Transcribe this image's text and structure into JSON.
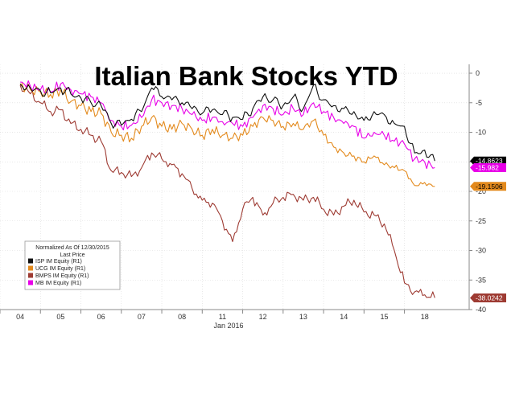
{
  "chart_data": {
    "type": "line",
    "title": "Italian Bank Stocks YTD",
    "xlabel": "Jan 2016",
    "ylabel": "",
    "x_ticks": [
      "04",
      "05",
      "06",
      "07",
      "08",
      "11",
      "12",
      "13",
      "14",
      "15",
      "18"
    ],
    "y_ticks": [
      0,
      -5,
      -10,
      -15,
      -20,
      -25,
      -30,
      -35,
      -40
    ],
    "ylim": [
      -40,
      1.5
    ],
    "grid": true,
    "legend": {
      "header": "Normalized As Of 12/30/2015",
      "subheader": "Last Price",
      "placement": "bottom-left"
    },
    "x": [
      0,
      0.25,
      0.5,
      0.75,
      1,
      1.25,
      1.5,
      1.75,
      2,
      2.25,
      2.5,
      2.75,
      3,
      3.25,
      3.5,
      3.75,
      4,
      4.25,
      4.5,
      4.75,
      5,
      5.25,
      5.5,
      5.75,
      6,
      6.25,
      6.5,
      6.75,
      7,
      7.25,
      7.5,
      7.75,
      8,
      8.25,
      8.5,
      8.75,
      9,
      9.25,
      9.5,
      9.75,
      10,
      10.25
    ],
    "series": [
      {
        "name": "ISP IM Equity  (R1)",
        "color": "#111111",
        "last": "-14.8623",
        "values": [
          -1.8,
          -2.5,
          -3.0,
          -3.3,
          -2.5,
          -3.5,
          -4.2,
          -5.0,
          -5.5,
          -8.5,
          -8.8,
          -7.8,
          -6.5,
          -2.5,
          -4.0,
          -4.5,
          -5.0,
          -6.0,
          -6.8,
          -6.2,
          -7.0,
          -7.5,
          -7.8,
          -6.0,
          -4.0,
          -4.5,
          -5.5,
          -4.0,
          -6.0,
          -2.0,
          -4.5,
          -5.5,
          -6.0,
          -6.5,
          -8.0,
          -6.5,
          -7.0,
          -8.5,
          -9.0,
          -13.5,
          -13.0,
          -14.86
        ]
      },
      {
        "name": "UCG IM Equity  (R1)",
        "color": "#e38a1d",
        "last": "-19.1506",
        "values": [
          -2.0,
          -2.8,
          -3.2,
          -3.6,
          -2.8,
          -4.8,
          -5.5,
          -6.5,
          -6.8,
          -10.0,
          -10.5,
          -11.0,
          -9.0,
          -7.5,
          -9.0,
          -9.5,
          -8.5,
          -9.5,
          -10.5,
          -9.5,
          -10.5,
          -11.0,
          -10.5,
          -9.0,
          -7.5,
          -8.0,
          -9.0,
          -8.5,
          -9.5,
          -8.0,
          -10.5,
          -12.5,
          -13.5,
          -14.0,
          -15.0,
          -14.0,
          -15.5,
          -16.0,
          -16.5,
          -19.0,
          -18.5,
          -19.15
        ]
      },
      {
        "name": "BMPS IM Equity  (R1)",
        "color": "#9e3b33",
        "last": "-38.0242",
        "values": [
          -2.0,
          -3.5,
          -5.0,
          -6.5,
          -6.2,
          -8.5,
          -9.5,
          -10.5,
          -11.5,
          -16.5,
          -16.8,
          -17.5,
          -16.0,
          -13.5,
          -14.5,
          -15.5,
          -17.0,
          -19.5,
          -21.5,
          -22.0,
          -25.0,
          -28.5,
          -23.0,
          -21.0,
          -24.0,
          -22.0,
          -21.0,
          -20.5,
          -21.5,
          -21.0,
          -23.0,
          -24.0,
          -22.5,
          -21.5,
          -23.5,
          -24.0,
          -25.5,
          -30.0,
          -35.5,
          -37.0,
          -37.5,
          -38.02
        ]
      },
      {
        "name": "MB IM Equity  (R1)",
        "color": "#e800e8",
        "last": "-15.982",
        "values": [
          -1.5,
          -2.2,
          -2.8,
          -3.2,
          -1.8,
          -2.8,
          -3.5,
          -4.0,
          -5.0,
          -8.0,
          -9.0,
          -8.8,
          -7.5,
          -4.5,
          -5.0,
          -5.5,
          -6.0,
          -7.0,
          -8.0,
          -7.5,
          -8.2,
          -8.5,
          -9.0,
          -7.5,
          -5.5,
          -6.0,
          -7.0,
          -6.0,
          -7.0,
          -5.0,
          -6.5,
          -7.5,
          -8.5,
          -9.0,
          -11.0,
          -10.0,
          -10.5,
          -11.5,
          -12.0,
          -14.5,
          -15.0,
          -15.98
        ]
      }
    ]
  }
}
